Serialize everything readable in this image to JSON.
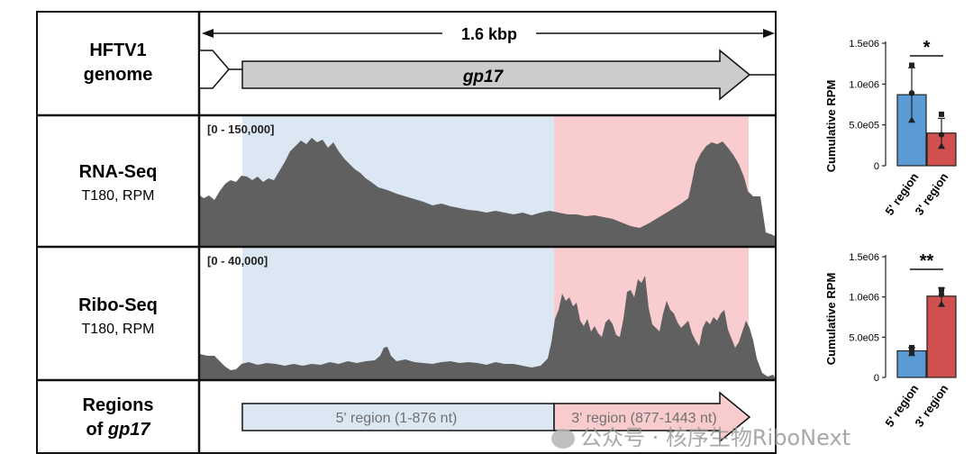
{
  "tracks": {
    "genome": {
      "label_line1": "HFTV1",
      "label_line2": "genome",
      "scale_text": "1.6 kbp",
      "gene_name": "gp17"
    },
    "rna": {
      "label_title": "RNA-Seq",
      "label_sub": "T180, RPM",
      "range_text": "[0 - 150,000]",
      "fill_color": "#606060"
    },
    "ribo": {
      "label_title": "Ribo-Seq",
      "label_sub": "T180, RPM",
      "range_text": "[0 - 40,000]",
      "fill_color": "#606060"
    },
    "regions": {
      "label_line1": "Regions",
      "label_line2_prefix": "of ",
      "label_line2_gene": "gp17",
      "region5_text": "5' region (1-876 nt)",
      "region3_text": "3' region (877-1443 nt)",
      "region5_color": "#dbe7f3",
      "region3_color": "#f8cccc"
    }
  },
  "colors": {
    "blue": "#5b9bd5",
    "red": "#d05050",
    "shade_blue": "#dbe8f4",
    "shade_red": "#f9cdd0",
    "gene_arrow": "#cccccc"
  },
  "chart_data": [
    {
      "type": "bar",
      "ylabel": "Cumulative RPM",
      "ylim": [
        0,
        1500000
      ],
      "yticks": [
        0,
        500000,
        1000000,
        1500000
      ],
      "ytick_labels": [
        "0",
        "5.0e05",
        "1.0e06",
        "1.5e06"
      ],
      "categories": [
        "5' region",
        "3' region"
      ],
      "colors": [
        "#5b9bd5",
        "#d05050"
      ],
      "values": [
        870000,
        400000
      ],
      "errors": [
        330000,
        180000
      ],
      "points": [
        [
          1230000,
          890000,
          560000
        ],
        [
          630000,
          380000,
          240000
        ]
      ],
      "significance": "*"
    },
    {
      "type": "bar",
      "ylabel": "Cumulative RPM",
      "ylim": [
        0,
        1500000
      ],
      "yticks": [
        0,
        500000,
        1000000,
        1500000
      ],
      "ytick_labels": [
        "0",
        "5.0e05",
        "1.0e06",
        "1.5e06"
      ],
      "categories": [
        "5' region",
        "3' region"
      ],
      "colors": [
        "#5b9bd5",
        "#d05050"
      ],
      "values": [
        330000,
        1010000
      ],
      "errors": [
        40000,
        100000
      ],
      "points": [
        [
          370000,
          310000,
          300000
        ],
        [
          1090000,
          1030000,
          910000
        ]
      ],
      "significance": "**"
    }
  ],
  "watermark": {
    "text": "公众号 · 核序生物RiboNext"
  }
}
